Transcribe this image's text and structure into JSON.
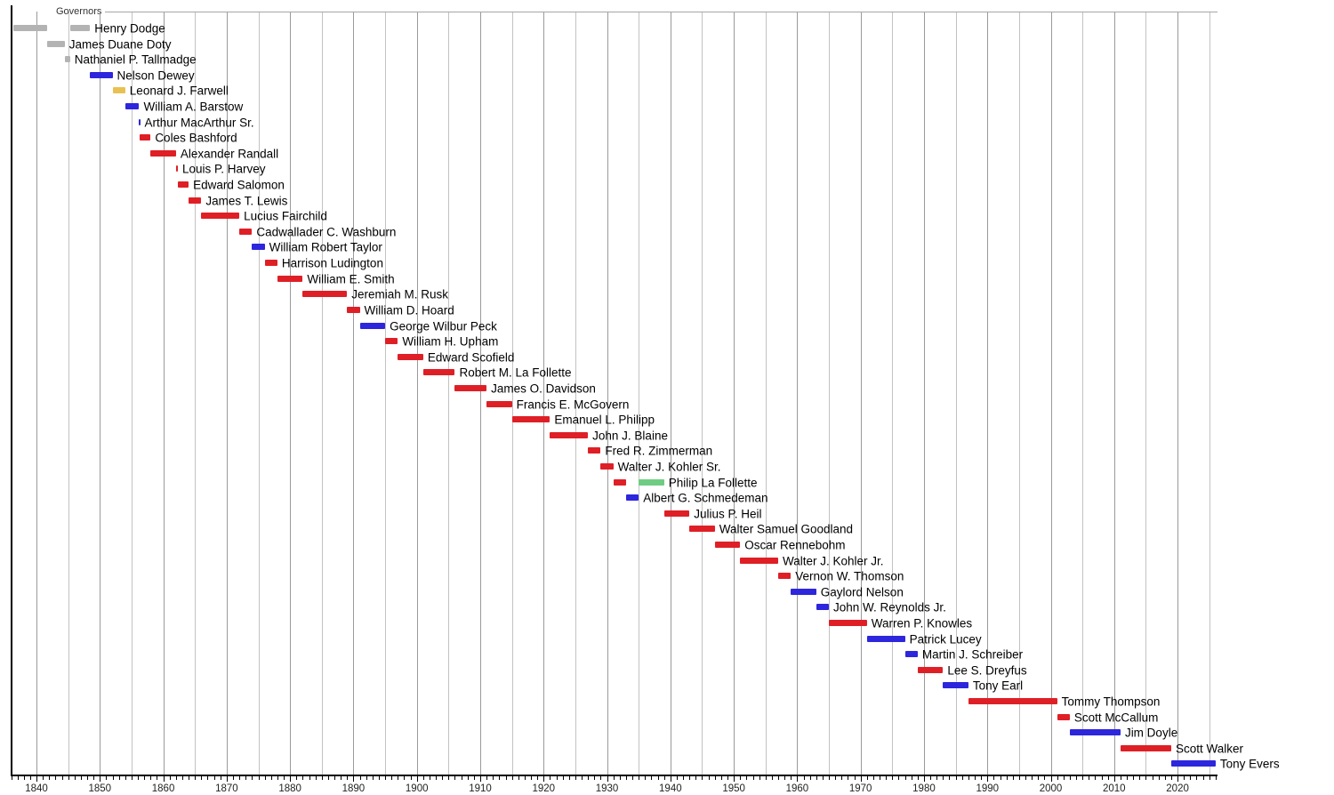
{
  "chart_data": {
    "type": "timeline",
    "title": "Governors",
    "x_axis": {
      "min": 1836,
      "max": 2026.3,
      "tick_labels": [
        "1840",
        "1850",
        "1860",
        "1870",
        "1880",
        "1890",
        "1900",
        "1910",
        "1920",
        "1930",
        "1940",
        "1950",
        "1960",
        "1970",
        "1980",
        "1990",
        "2000",
        "2010",
        "2020"
      ],
      "minor_tick_every_years": 1,
      "gridline_every_years": 5,
      "grid": true
    },
    "party_colors": {
      "territorial": "#b3b3b3",
      "democratic": "#2d26dd",
      "whig": "#e9c152",
      "republican": "#df1f26",
      "progressive": "#6ecd82"
    },
    "governors": [
      {
        "name": "Henry Dodge",
        "terms": [
          {
            "start": 1836.4,
            "end": 1841.7,
            "party": "territorial"
          },
          {
            "start": 1845.3,
            "end": 1848.45,
            "party": "territorial"
          }
        ]
      },
      {
        "name": "James Duane Doty",
        "terms": [
          {
            "start": 1841.7,
            "end": 1844.45,
            "party": "territorial"
          }
        ]
      },
      {
        "name": "Nathaniel P. Tallmadge",
        "terms": [
          {
            "start": 1844.45,
            "end": 1845.3,
            "party": "territorial"
          }
        ]
      },
      {
        "name": "Nelson Dewey",
        "terms": [
          {
            "start": 1848.45,
            "end": 1852.0,
            "party": "democratic"
          }
        ]
      },
      {
        "name": "Leonard J. Farwell",
        "terms": [
          {
            "start": 1852.0,
            "end": 1854.0,
            "party": "whig"
          }
        ]
      },
      {
        "name": "William A. Barstow",
        "terms": [
          {
            "start": 1854.0,
            "end": 1856.2,
            "party": "democratic"
          }
        ]
      },
      {
        "name": "Arthur MacArthur Sr.",
        "terms": [
          {
            "start": 1856.2,
            "end": 1856.35,
            "party": "democratic"
          }
        ]
      },
      {
        "name": "Coles Bashford",
        "terms": [
          {
            "start": 1856.25,
            "end": 1858.0,
            "party": "republican"
          }
        ]
      },
      {
        "name": "Alexander Randall",
        "terms": [
          {
            "start": 1858.0,
            "end": 1862.0,
            "party": "republican"
          }
        ]
      },
      {
        "name": "Louis P. Harvey",
        "terms": [
          {
            "start": 1862.0,
            "end": 1862.3,
            "party": "republican"
          }
        ]
      },
      {
        "name": "Edward Salomon",
        "terms": [
          {
            "start": 1862.3,
            "end": 1864.0,
            "party": "republican"
          }
        ]
      },
      {
        "name": "James T. Lewis",
        "terms": [
          {
            "start": 1864.0,
            "end": 1866.0,
            "party": "republican"
          }
        ]
      },
      {
        "name": "Lucius Fairchild",
        "terms": [
          {
            "start": 1866.0,
            "end": 1872.0,
            "party": "republican"
          }
        ]
      },
      {
        "name": "Cadwallader C. Washburn",
        "terms": [
          {
            "start": 1872.0,
            "end": 1874.0,
            "party": "republican"
          }
        ]
      },
      {
        "name": "William Robert Taylor",
        "terms": [
          {
            "start": 1874.0,
            "end": 1876.0,
            "party": "democratic"
          }
        ]
      },
      {
        "name": "Harrison Ludington",
        "terms": [
          {
            "start": 1876.0,
            "end": 1878.0,
            "party": "republican"
          }
        ]
      },
      {
        "name": "William E. Smith",
        "terms": [
          {
            "start": 1878.0,
            "end": 1882.0,
            "party": "republican"
          }
        ]
      },
      {
        "name": "Jeremiah M. Rusk",
        "terms": [
          {
            "start": 1882.0,
            "end": 1889.0,
            "party": "republican"
          }
        ]
      },
      {
        "name": "William D. Hoard",
        "terms": [
          {
            "start": 1889.0,
            "end": 1891.0,
            "party": "republican"
          }
        ]
      },
      {
        "name": "George Wilbur Peck",
        "terms": [
          {
            "start": 1891.0,
            "end": 1895.0,
            "party": "democratic"
          }
        ]
      },
      {
        "name": "William H. Upham",
        "terms": [
          {
            "start": 1895.0,
            "end": 1897.0,
            "party": "republican"
          }
        ]
      },
      {
        "name": "Edward Scofield",
        "terms": [
          {
            "start": 1897.0,
            "end": 1901.0,
            "party": "republican"
          }
        ]
      },
      {
        "name": "Robert M. La Follette",
        "terms": [
          {
            "start": 1901.0,
            "end": 1906.0,
            "party": "republican"
          }
        ]
      },
      {
        "name": "James O. Davidson",
        "terms": [
          {
            "start": 1906.0,
            "end": 1911.0,
            "party": "republican"
          }
        ]
      },
      {
        "name": "Francis E. McGovern",
        "terms": [
          {
            "start": 1911.0,
            "end": 1915.0,
            "party": "republican"
          }
        ]
      },
      {
        "name": "Emanuel L. Philipp",
        "terms": [
          {
            "start": 1915.0,
            "end": 1921.0,
            "party": "republican"
          }
        ]
      },
      {
        "name": "John J. Blaine",
        "terms": [
          {
            "start": 1921.0,
            "end": 1927.0,
            "party": "republican"
          }
        ]
      },
      {
        "name": "Fred R. Zimmerman",
        "terms": [
          {
            "start": 1927.0,
            "end": 1929.0,
            "party": "republican"
          }
        ]
      },
      {
        "name": "Walter J. Kohler Sr.",
        "terms": [
          {
            "start": 1929.0,
            "end": 1931.0,
            "party": "republican"
          }
        ]
      },
      {
        "name": "Philip La Follette",
        "terms": [
          {
            "start": 1931.0,
            "end": 1933.0,
            "party": "republican"
          },
          {
            "start": 1935.0,
            "end": 1939.0,
            "party": "progressive"
          }
        ]
      },
      {
        "name": "Albert G. Schmedeman",
        "terms": [
          {
            "start": 1933.0,
            "end": 1935.0,
            "party": "democratic"
          }
        ]
      },
      {
        "name": "Julius P. Heil",
        "terms": [
          {
            "start": 1939.0,
            "end": 1943.0,
            "party": "republican"
          }
        ]
      },
      {
        "name": "Walter Samuel Goodland",
        "terms": [
          {
            "start": 1943.0,
            "end": 1947.0,
            "party": "republican"
          }
        ]
      },
      {
        "name": "Oscar Rennebohm",
        "terms": [
          {
            "start": 1947.0,
            "end": 1951.0,
            "party": "republican"
          }
        ]
      },
      {
        "name": "Walter J. Kohler Jr.",
        "terms": [
          {
            "start": 1951.0,
            "end": 1957.0,
            "party": "republican"
          }
        ]
      },
      {
        "name": "Vernon W. Thomson",
        "terms": [
          {
            "start": 1957.0,
            "end": 1959.0,
            "party": "republican"
          }
        ]
      },
      {
        "name": "Gaylord Nelson",
        "terms": [
          {
            "start": 1959.0,
            "end": 1963.0,
            "party": "democratic"
          }
        ]
      },
      {
        "name": "John W. Reynolds Jr.",
        "terms": [
          {
            "start": 1963.0,
            "end": 1965.0,
            "party": "democratic"
          }
        ]
      },
      {
        "name": "Warren P. Knowles",
        "terms": [
          {
            "start": 1965.0,
            "end": 1971.0,
            "party": "republican"
          }
        ]
      },
      {
        "name": "Patrick Lucey",
        "terms": [
          {
            "start": 1971.0,
            "end": 1977.0,
            "party": "democratic"
          }
        ]
      },
      {
        "name": "Martin J. Schreiber",
        "terms": [
          {
            "start": 1977.0,
            "end": 1979.0,
            "party": "democratic"
          }
        ]
      },
      {
        "name": "Lee S. Dreyfus",
        "terms": [
          {
            "start": 1979.0,
            "end": 1983.0,
            "party": "republican"
          }
        ]
      },
      {
        "name": "Tony Earl",
        "terms": [
          {
            "start": 1983.0,
            "end": 1987.0,
            "party": "democratic"
          }
        ]
      },
      {
        "name": "Tommy Thompson",
        "terms": [
          {
            "start": 1987.0,
            "end": 2001.0,
            "party": "republican"
          }
        ]
      },
      {
        "name": "Scott McCallum",
        "terms": [
          {
            "start": 2001.0,
            "end": 2003.0,
            "party": "republican"
          }
        ]
      },
      {
        "name": "Jim Doyle",
        "terms": [
          {
            "start": 2003.0,
            "end": 2011.0,
            "party": "democratic"
          }
        ]
      },
      {
        "name": "Scott Walker",
        "terms": [
          {
            "start": 2011.0,
            "end": 2019.0,
            "party": "republican"
          }
        ]
      },
      {
        "name": "Tony Evers",
        "terms": [
          {
            "start": 2019.0,
            "end": 2026.0,
            "party": "democratic"
          }
        ]
      }
    ]
  }
}
